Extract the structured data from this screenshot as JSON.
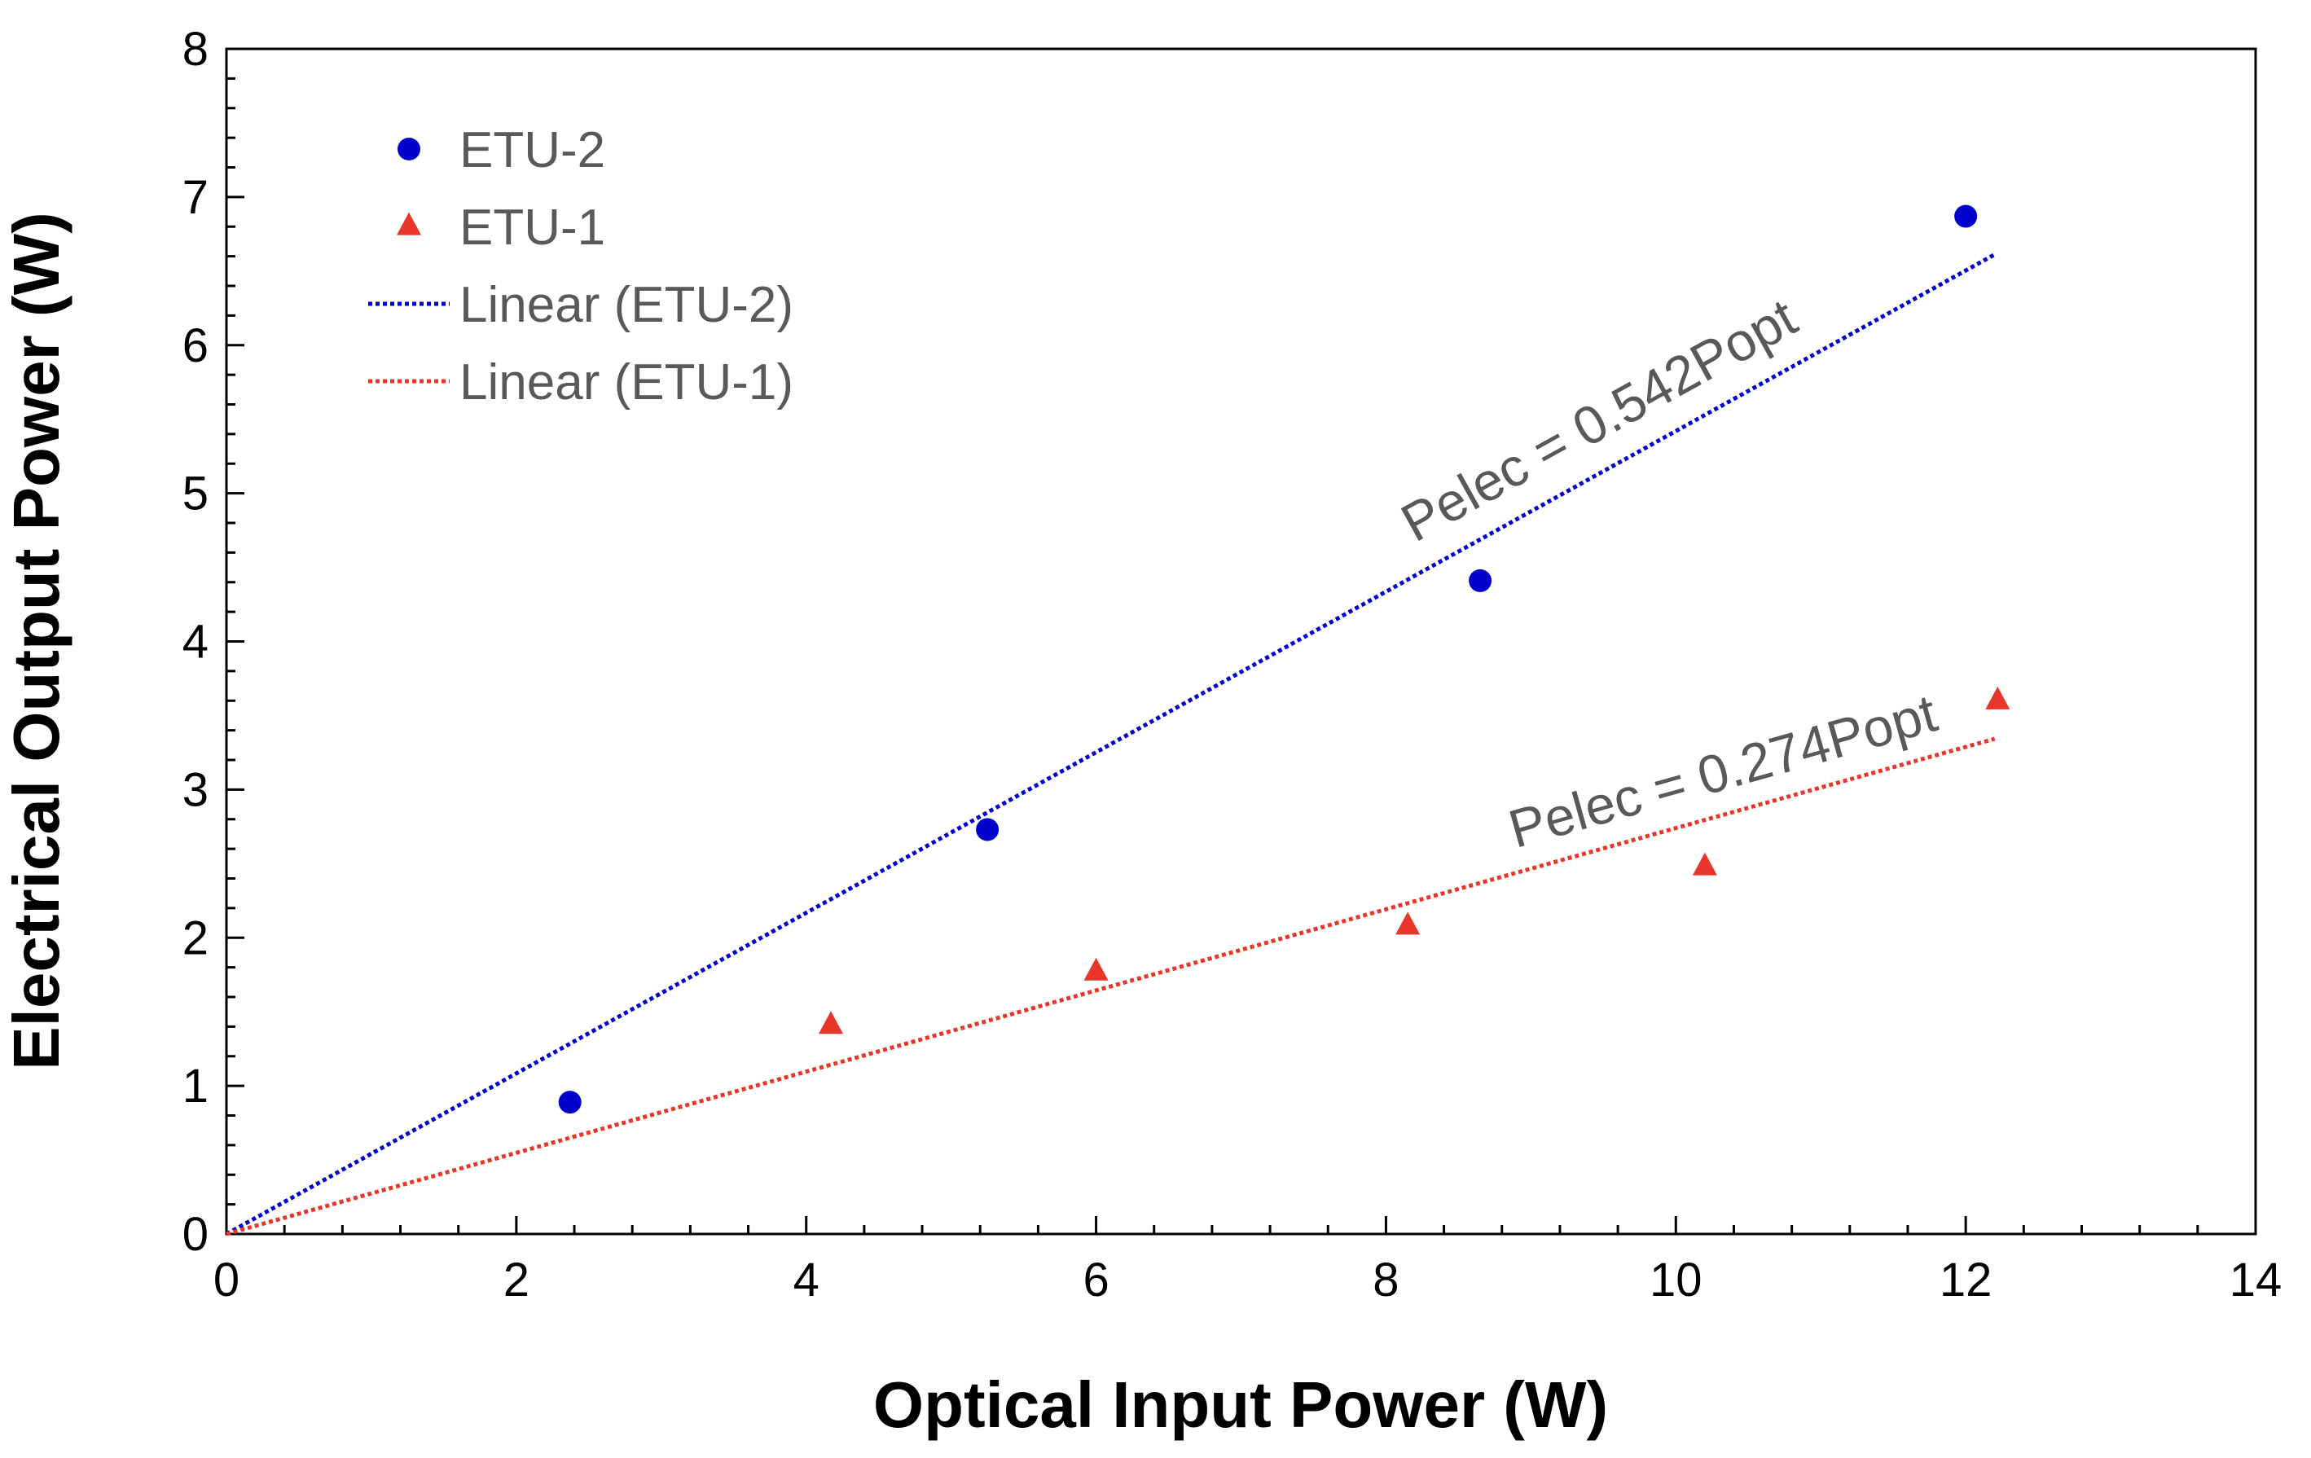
{
  "chart_data": {
    "type": "scatter",
    "title": "",
    "xlabel": "Optical Input Power (W)",
    "ylabel": "Electrical Output Power (W)",
    "xlim": [
      0,
      14
    ],
    "ylim": [
      0,
      8
    ],
    "x_ticks": [
      0,
      2,
      4,
      6,
      8,
      10,
      12,
      14
    ],
    "y_ticks": [
      0,
      1,
      2,
      3,
      4,
      5,
      6,
      7,
      8
    ],
    "x_tick_labels": [
      "0",
      "2",
      "4",
      "6",
      "8",
      "10",
      "12",
      "14"
    ],
    "y_tick_labels": [
      "0",
      "1",
      "2",
      "3",
      "4",
      "5",
      "6",
      "7",
      "8"
    ],
    "grid": false,
    "legend_position": "top-left",
    "series": [
      {
        "name": "ETU-2",
        "marker": "circle",
        "color": "#0000CC",
        "x": [
          2.37,
          5.25,
          8.65,
          12.0
        ],
        "y": [
          0.89,
          2.73,
          4.41,
          6.87
        ]
      },
      {
        "name": "ETU-1",
        "marker": "triangle",
        "color": "#E8372A",
        "x": [
          4.17,
          6.0,
          8.15,
          10.2,
          12.22
        ],
        "y": [
          1.41,
          1.77,
          2.08,
          2.48,
          3.6
        ]
      }
    ],
    "trendlines": [
      {
        "name": "Linear (ETU-2)",
        "color": "#0000CC",
        "slope": 0.542,
        "x_range": [
          0,
          12.2
        ],
        "style": "dotted"
      },
      {
        "name": "Linear (ETU-1)",
        "color": "#E8372A",
        "slope": 0.274,
        "x_range": [
          0,
          12.2
        ],
        "style": "dotted"
      }
    ],
    "annotations": [
      {
        "text": "Pelec = 0.542Popt",
        "series": "Linear (ETU-2)",
        "x": 8.2
      },
      {
        "text": "Pelec = 0.274Popt",
        "series": "Linear (ETU-1)",
        "x": 8.5
      }
    ]
  }
}
